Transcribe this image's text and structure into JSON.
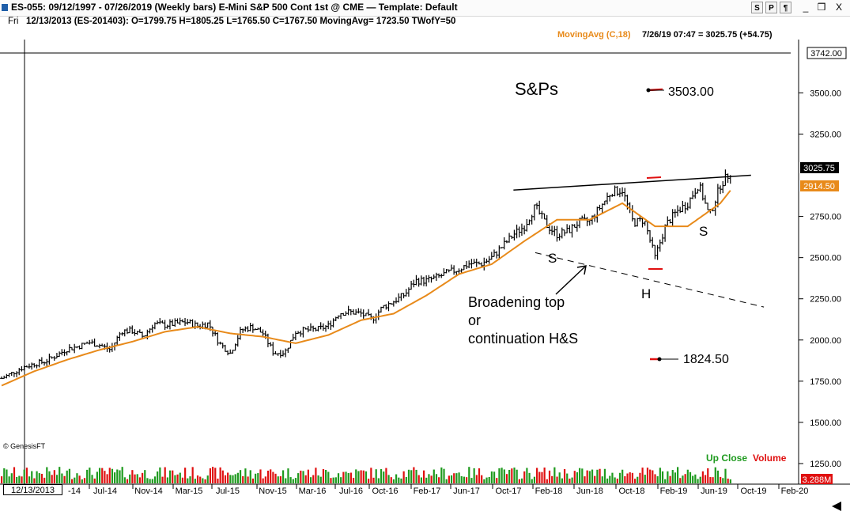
{
  "window": {
    "title": "ES-055:  09/12/1997 - 07/26/2019  (Weekly bars)   E-Mini S&P 500 Cont 1st @ CME  —  Template: Default",
    "icon": "chart-window-icon",
    "buttons": [
      "S",
      "P",
      "¶"
    ],
    "controls": [
      "_",
      "❒",
      "X"
    ]
  },
  "info_bar": {
    "day": "Fri",
    "text": "12/13/2013 (ES-201403):  O=1799.75  H=1805.25  L=1765.50  C=1767.50  MovingAvg= 1723.50  TWofY=50"
  },
  "header_right": {
    "moving_avg_label": "MovingAvg (C,18)",
    "last_quote": "7/26/19 07:47 = 3025.75 (+54.75)"
  },
  "colors": {
    "bar": "#000000",
    "moving_avg": "#e88a1a",
    "up_volume": "#1e9a1e",
    "down_volume": "#e01010",
    "marker": "#e01010",
    "price_tag_bg": "#000000",
    "ma_tag_bg": "#e88a1a"
  },
  "price_axis": {
    "ticks": [
      "3500.00",
      "3250.00",
      "2750.00",
      "2500.00",
      "2250.00",
      "2000.00",
      "1750.00",
      "1500.00",
      "1250.00"
    ],
    "top_box": "3742.00",
    "last_price_tag": "3025.75",
    "ma_tag": "2914.50",
    "volume_tag": "3.288M"
  },
  "time_axis": {
    "cursor_date": "12/13/2013",
    "labels": [
      "-14",
      "Jul-14",
      "Nov-14",
      "Mar-15",
      "Jul-15",
      "Nov-15",
      "Mar-16",
      "Jul-16",
      "Oct-16",
      "Feb-17",
      "Jun-17",
      "Oct-17",
      "Feb-18",
      "Jun-18",
      "Oct-18",
      "Feb-19",
      "Jun-19",
      "Oct-19",
      "Feb-20"
    ]
  },
  "annotations": {
    "title": "S&Ps",
    "target_high": "3503.00",
    "target_low": "1824.50",
    "left_shoulder": "S",
    "head": "H",
    "right_shoulder": "S",
    "pattern_line1": "Broadening top",
    "pattern_line2": "or",
    "pattern_line3": "continuation H&S",
    "copyright": "© GenesisFT",
    "legend_up": "Up Close",
    "legend_down": "Volume"
  },
  "chart_data": {
    "type": "bar",
    "title": "S&Ps",
    "xlabel": "",
    "ylabel": "",
    "ylim": [
      1125,
      3742
    ],
    "x_range": [
      "2013-12",
      "2020-03"
    ],
    "series": [
      {
        "name": "",
        "style": "weekly-ohlc",
        "x": [
          "2013-12",
          "2014-01",
          "2014-02",
          "2014-03",
          "2014-04",
          "2014-05",
          "2014-06",
          "2014-07",
          "2014-08",
          "2014-09",
          "2014-10",
          "2014-11",
          "2014-12",
          "2015-01",
          "2015-02",
          "2015-03",
          "2015-04",
          "2015-05",
          "2015-06",
          "2015-07",
          "2015-08",
          "2015-09",
          "2015-10",
          "2015-11",
          "2015-12",
          "2016-01",
          "2016-02",
          "2016-03",
          "2016-04",
          "2016-05",
          "2016-06",
          "2016-07",
          "2016-08",
          "2016-09",
          "2016-10",
          "2016-11",
          "2016-12",
          "2017-01",
          "2017-02",
          "2017-03",
          "2017-04",
          "2017-05",
          "2017-06",
          "2017-07",
          "2017-08",
          "2017-09",
          "2017-10",
          "2017-11",
          "2017-12",
          "2018-01",
          "2018-02",
          "2018-03",
          "2018-04",
          "2018-05",
          "2018-06",
          "2018-07",
          "2018-08",
          "2018-09",
          "2018-10",
          "2018-11",
          "2018-12",
          "2019-01",
          "2019-02",
          "2019-03",
          "2019-04",
          "2019-05",
          "2019-06",
          "2019-07"
        ],
        "values": [
          1767,
          1800,
          1835,
          1855,
          1870,
          1905,
          1945,
          1960,
          1985,
          1970,
          1940,
          2055,
          2055,
          2020,
          2100,
          2090,
          2100,
          2110,
          2085,
          2100,
          1980,
          1920,
          2060,
          2080,
          2040,
          1920,
          1925,
          2050,
          2060,
          2065,
          2085,
          2165,
          2170,
          2160,
          2125,
          2200,
          2235,
          2275,
          2360,
          2360,
          2380,
          2410,
          2430,
          2465,
          2460,
          2500,
          2570,
          2640,
          2690,
          2810,
          2700,
          2640,
          2660,
          2715,
          2720,
          2810,
          2900,
          2910,
          2710,
          2730,
          2500,
          2700,
          2780,
          2830,
          2945,
          2750,
          2940,
          3025
        ]
      },
      {
        "name": "MovingAvg (C,18)",
        "x": [
          "2013-12",
          "2014-03",
          "2014-06",
          "2014-09",
          "2014-12",
          "2015-03",
          "2015-06",
          "2015-09",
          "2015-12",
          "2016-03",
          "2016-06",
          "2016-09",
          "2016-12",
          "2017-03",
          "2017-06",
          "2017-09",
          "2017-12",
          "2018-03",
          "2018-06",
          "2018-09",
          "2018-12",
          "2019-03",
          "2019-06",
          "2019-07"
        ],
        "values": [
          1723,
          1810,
          1880,
          1940,
          1990,
          2050,
          2080,
          2040,
          2020,
          1980,
          2030,
          2120,
          2160,
          2270,
          2400,
          2460,
          2600,
          2730,
          2730,
          2830,
          2690,
          2690,
          2830,
          2914
        ]
      }
    ],
    "volume": {
      "legend": [
        "Up Close",
        "Volume"
      ],
      "last": "3.288M"
    },
    "reference_levels": {
      "target_high": 3503.0,
      "target_low": 1824.5
    },
    "trendlines": [
      {
        "label": "upper",
        "from": [
          "2017-11",
          2910
        ],
        "to": [
          "2019-07",
          3000
        ]
      },
      {
        "label": "lower",
        "from": [
          "2018-01",
          2530
        ],
        "to": [
          "2019-10",
          2200
        ]
      }
    ],
    "grid": false,
    "legend_position": "top-right"
  }
}
